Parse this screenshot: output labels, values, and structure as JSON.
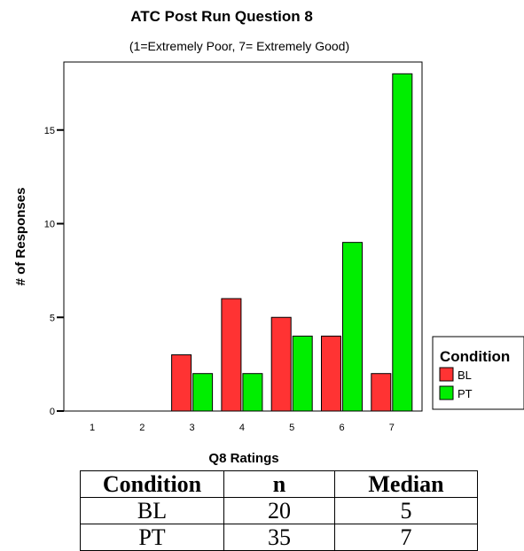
{
  "chart_data": {
    "type": "bar",
    "title": "ATC Post Run Question 8",
    "subtitle": "(1=Extremely Poor, 7= Extremely Good)",
    "xlabel": "Q8 Ratings",
    "ylabel": "# of Responses",
    "categories": [
      "1",
      "2",
      "3",
      "4",
      "5",
      "6",
      "7"
    ],
    "series": [
      {
        "name": "BL",
        "color": "#ff3333",
        "values": [
          0,
          0,
          3,
          6,
          5,
          4,
          2
        ]
      },
      {
        "name": "PT",
        "color": "#00ee00",
        "values": [
          0,
          0,
          2,
          2,
          4,
          9,
          18
        ]
      }
    ],
    "ylim": [
      0,
      19
    ],
    "yticks": [
      0,
      5,
      10,
      15
    ],
    "grid": false,
    "legend": {
      "title": "Condition",
      "placement": "right"
    }
  },
  "table": {
    "headers": [
      "Condition",
      "n",
      "Median"
    ],
    "rows": [
      [
        "BL",
        "20",
        "5"
      ],
      [
        "PT",
        "35",
        "7"
      ]
    ]
  }
}
